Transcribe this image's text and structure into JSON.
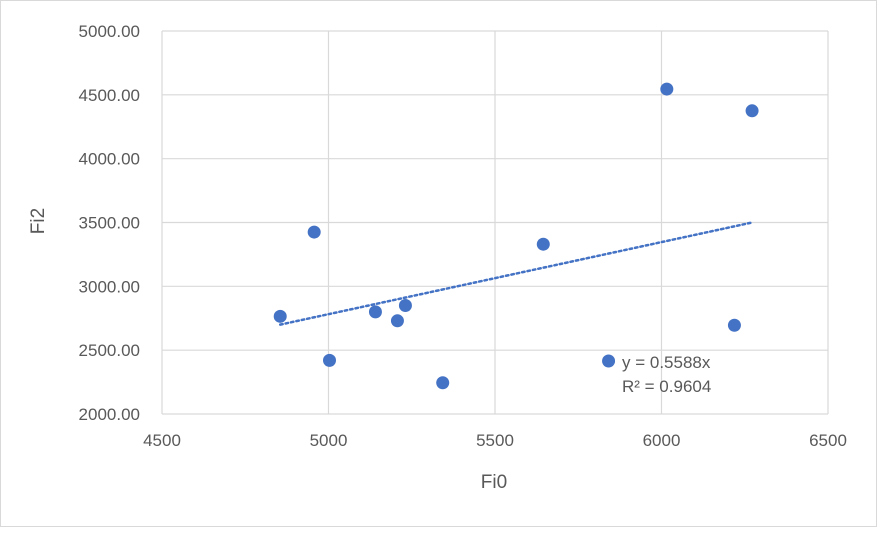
{
  "chart_data": {
    "type": "scatter",
    "xlabel": "Fi0",
    "ylabel": "Fi2",
    "xlim": [
      4500,
      6500
    ],
    "ylim": [
      2000,
      5000
    ],
    "x_ticks": [
      4500,
      5000,
      5500,
      6000,
      6500
    ],
    "y_ticks": [
      2000,
      2500,
      3000,
      3500,
      4000,
      4500,
      5000
    ],
    "x_tick_labels": [
      "4500",
      "5000",
      "5500",
      "6000",
      "6500"
    ],
    "y_tick_labels": [
      "2000.00",
      "2500.00",
      "3000.00",
      "3500.00",
      "4000.00",
      "4500.00",
      "5000.00"
    ],
    "grid": true,
    "legend": "none",
    "series": [
      {
        "x": [
          4855,
          4957,
          5003,
          5141,
          5207,
          5231,
          5343,
          5645,
          5841,
          6016,
          6219,
          6272
        ],
        "y": [
          2765,
          3425,
          2420,
          2800,
          2730,
          2850,
          2245,
          3330,
          2415,
          4545,
          2695,
          4375
        ],
        "color": "#4472c4"
      }
    ],
    "trendline": {
      "type": "linear",
      "x_range": [
        4855,
        6272
      ],
      "y_range": [
        2700,
        3500
      ],
      "color": "#4472c4",
      "style": "dotted"
    },
    "annotations": {
      "equation": "y = 0.5588x",
      "r_squared": "R² = 0.9604"
    }
  }
}
